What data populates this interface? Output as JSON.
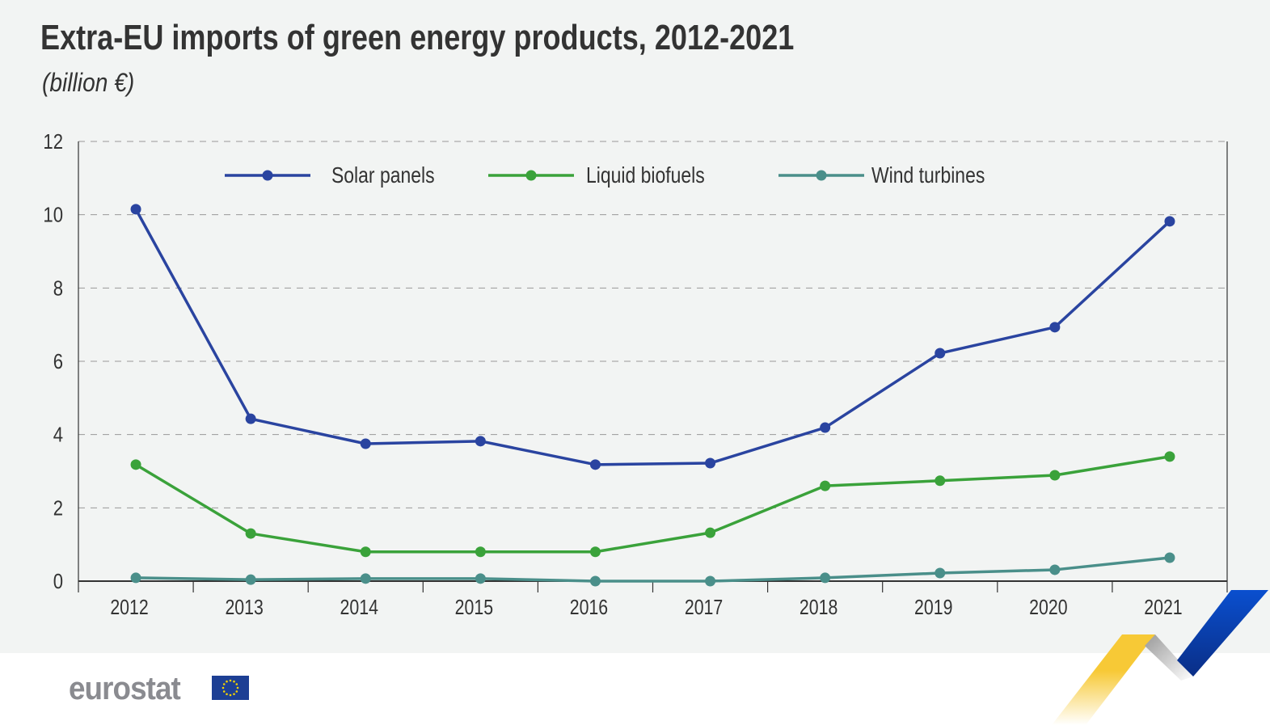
{
  "chart_data": {
    "type": "line",
    "title": "Extra-EU imports of green energy products, 2012-2021",
    "subtitle": "(billion €)",
    "categories": [
      "2012",
      "2013",
      "2014",
      "2015",
      "2016",
      "2017",
      "2018",
      "2019",
      "2020",
      "2021"
    ],
    "ylim": [
      0,
      12
    ],
    "yticks": [
      0,
      2,
      4,
      6,
      8,
      10,
      12
    ],
    "grid": "horizontal dashed",
    "legend_position": "top",
    "series": [
      {
        "name": "Solar panels",
        "color": "#2a44a0",
        "values": [
          10.15,
          4.43,
          3.75,
          3.82,
          3.18,
          3.22,
          4.19,
          6.22,
          6.93,
          9.82
        ]
      },
      {
        "name": "Liquid biofuels",
        "color": "#3aa23a",
        "values": [
          3.18,
          1.3,
          0.8,
          0.8,
          0.8,
          1.32,
          2.6,
          2.74,
          2.89,
          3.4
        ]
      },
      {
        "name": "Wind turbines",
        "color": "#4a8f8a",
        "values": [
          0.09,
          0.04,
          0.07,
          0.07,
          0.0,
          0.0,
          0.09,
          0.22,
          0.31,
          0.64
        ]
      }
    ]
  },
  "footer": {
    "logo_text": "eurostat"
  }
}
